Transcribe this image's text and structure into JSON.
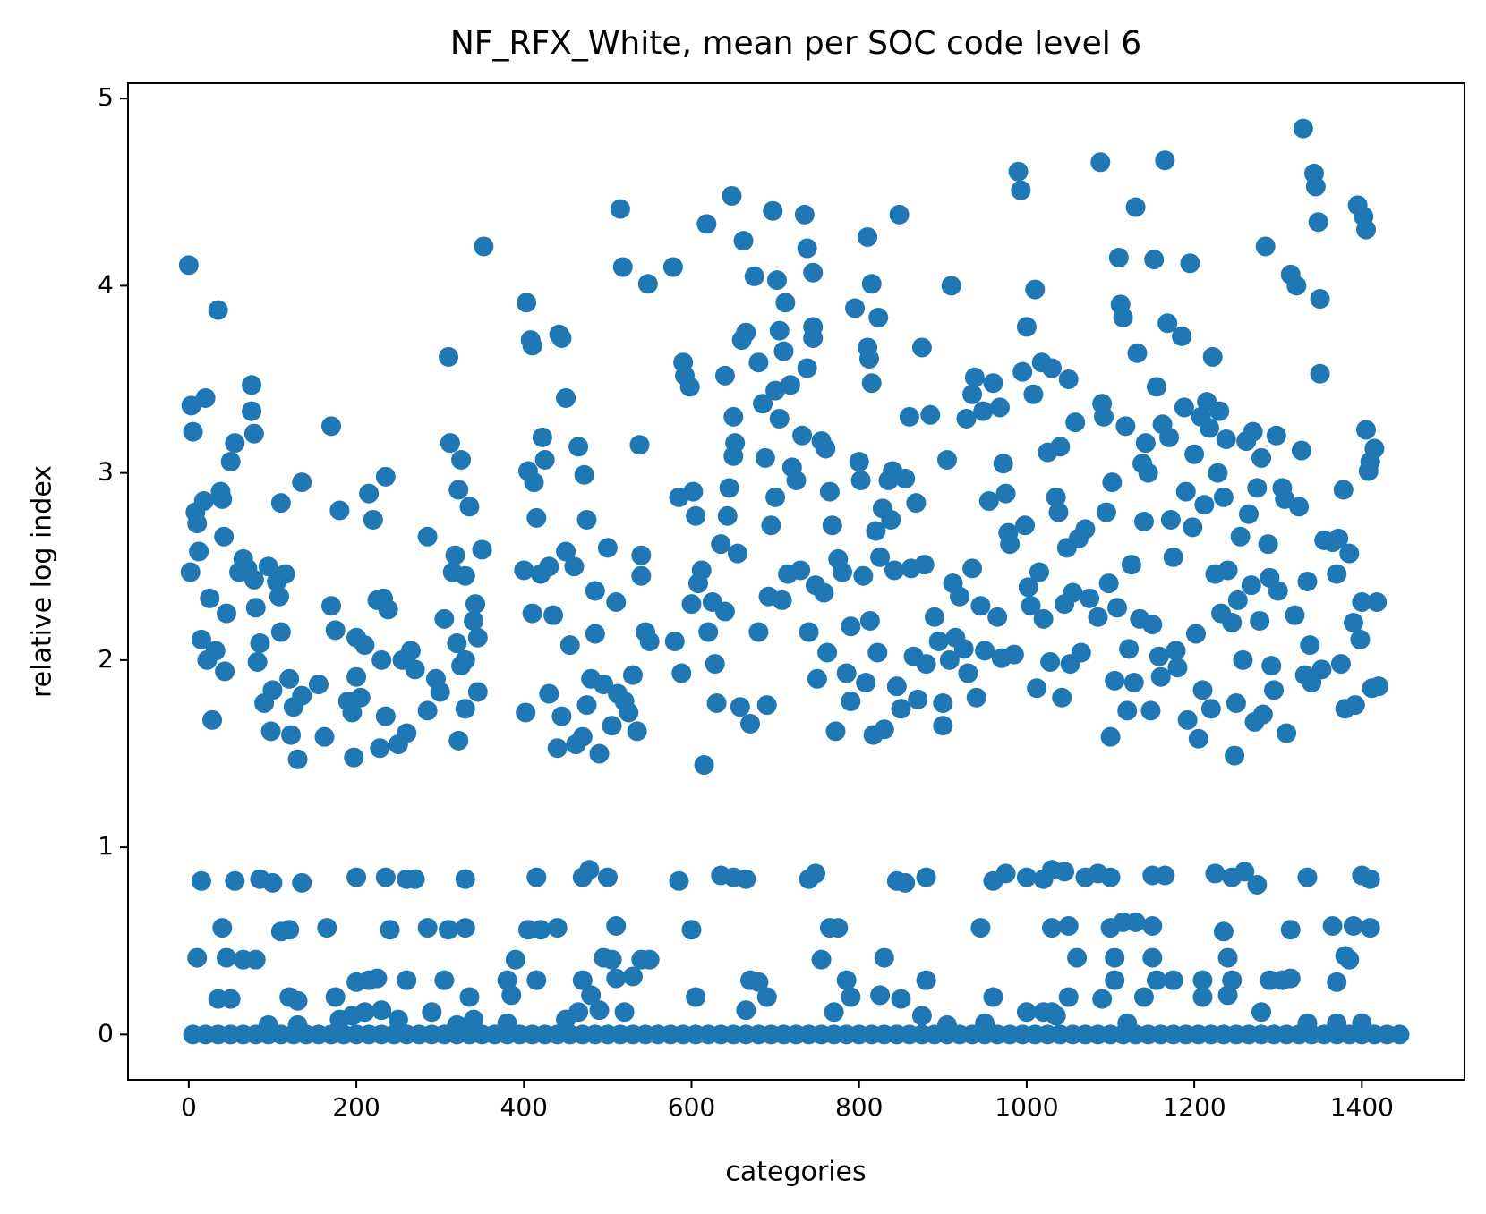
{
  "chart_data": {
    "type": "scatter",
    "title": "NF_RFX_White, mean per SOC code level 6",
    "xlabel": "categories",
    "ylabel": "relative log index",
    "color": "#1f77b4",
    "xlim": [
      -72.5,
      1522.5
    ],
    "ylim": [
      -0.242,
      5.082
    ],
    "xticks": [
      0,
      200,
      400,
      600,
      800,
      1000,
      1200,
      1400
    ],
    "yticks": [
      0,
      1,
      2,
      3,
      4,
      5
    ],
    "x": [
      0,
      3,
      5,
      2,
      8,
      10,
      12,
      15,
      18,
      20,
      22,
      25,
      28,
      32,
      35,
      38,
      40,
      42,
      43,
      45,
      50,
      55,
      60,
      65,
      70,
      75,
      75,
      78,
      78,
      80,
      82,
      85,
      90,
      95,
      98,
      100,
      105,
      108,
      110,
      115,
      110,
      120,
      122,
      125,
      130,
      135,
      135,
      155,
      162,
      170,
      170,
      175,
      180,
      190,
      195,
      197,
      200,
      200,
      205,
      210,
      215,
      220,
      225,
      228,
      230,
      232,
      235,
      235,
      238,
      250,
      255,
      260,
      265,
      270,
      285,
      285,
      295,
      300,
      305,
      310,
      312,
      315,
      318,
      320,
      322,
      325,
      322,
      325,
      330,
      330,
      330,
      335,
      340,
      342,
      345,
      350,
      345,
      352,
      400,
      402,
      403,
      405,
      408,
      410,
      410,
      412,
      415,
      420,
      422,
      425,
      430,
      430,
      435,
      440,
      442,
      445,
      445,
      450,
      450,
      455,
      460,
      462,
      465,
      470,
      472,
      475,
      475,
      480,
      485,
      485,
      490,
      495,
      500,
      505,
      510,
      512,
      515,
      518,
      520,
      525,
      530,
      535,
      538,
      540,
      540,
      545,
      548,
      550,
      578,
      580,
      585,
      588,
      590,
      592,
      598,
      600,
      602,
      605,
      608,
      612,
      615,
      618,
      620,
      625,
      628,
      630,
      635,
      640,
      640,
      643,
      645,
      648,
      650,
      650,
      652,
      655,
      658,
      660,
      662,
      665,
      670,
      675,
      680,
      680,
      685,
      688,
      690,
      692,
      695,
      697,
      700,
      700,
      702,
      705,
      705,
      708,
      710,
      712,
      715,
      718,
      720,
      725,
      730,
      732,
      735,
      738,
      738,
      740,
      745,
      745,
      745,
      748,
      750,
      755,
      758,
      760,
      762,
      765,
      768,
      772,
      775,
      780,
      785,
      790,
      790,
      795,
      800,
      802,
      805,
      808,
      810,
      810,
      812,
      813,
      815,
      815,
      817,
      820,
      822,
      823,
      825,
      828,
      830,
      835,
      838,
      840,
      842,
      845,
      848,
      850,
      855,
      860,
      862,
      865,
      868,
      870,
      875,
      878,
      880,
      885,
      890,
      895,
      900,
      900,
      905,
      908,
      910,
      912,
      915,
      920,
      925,
      928,
      930,
      935,
      935,
      938,
      940,
      945,
      948,
      950,
      955,
      960,
      965,
      968,
      970,
      972,
      975,
      978,
      980,
      985,
      990,
      993,
      995,
      998,
      1000,
      1002,
      1005,
      1008,
      1010,
      1012,
      1015,
      1018,
      1020,
      1025,
      1028,
      1030,
      1035,
      1038,
      1040,
      1042,
      1045,
      1048,
      1050,
      1052,
      1055,
      1058,
      1062,
      1065,
      1070,
      1075,
      1085,
      1088,
      1090,
      1092,
      1095,
      1098,
      1100,
      1102,
      1105,
      1108,
      1110,
      1112,
      1115,
      1118,
      1120,
      1122,
      1125,
      1128,
      1130,
      1132,
      1135,
      1138,
      1140,
      1142,
      1145,
      1148,
      1150,
      1152,
      1155,
      1158,
      1160,
      1162,
      1165,
      1168,
      1170,
      1172,
      1175,
      1178,
      1180,
      1185,
      1188,
      1190,
      1192,
      1195,
      1198,
      1200,
      1202,
      1205,
      1208,
      1210,
      1212,
      1215,
      1218,
      1220,
      1222,
      1225,
      1228,
      1230,
      1232,
      1235,
      1238,
      1240,
      1245,
      1248,
      1250,
      1252,
      1255,
      1258,
      1262,
      1265,
      1268,
      1270,
      1272,
      1275,
      1278,
      1280,
      1282,
      1285,
      1288,
      1290,
      1292,
      1295,
      1298,
      1300,
      1305,
      1308,
      1310,
      1315,
      1320,
      1322,
      1325,
      1328,
      1330,
      1332,
      1335,
      1338,
      1340,
      1343,
      1345,
      1348,
      1350,
      1350,
      1352,
      1355,
      1365,
      1370,
      1372,
      1375,
      1378,
      1380,
      1385,
      1390,
      1392,
      1395,
      1398,
      1400,
      1402,
      1405,
      1405,
      1408,
      1410,
      1412,
      1415,
      1418,
      1420,
      5,
      20,
      35,
      50,
      65,
      80,
      95,
      110,
      125,
      140,
      155,
      170,
      185,
      200,
      215,
      230,
      245,
      260,
      275,
      290,
      305,
      320,
      335,
      350,
      365,
      380,
      395,
      410,
      425,
      440,
      455,
      470,
      485,
      500,
      515,
      530,
      545,
      560,
      575,
      590,
      605,
      620,
      635,
      650,
      665,
      680,
      695,
      710,
      725,
      740,
      755,
      770,
      785,
      800,
      815,
      830,
      845,
      860,
      875,
      890,
      905,
      920,
      935,
      950,
      965,
      980,
      995,
      1010,
      1025,
      1040,
      1055,
      1070,
      1085,
      1100,
      1115,
      1130,
      1145,
      1160,
      1175,
      1190,
      1205,
      1220,
      1235,
      1250,
      1265,
      1280,
      1295,
      1310,
      1325,
      1340,
      1355,
      1370,
      1385,
      1400,
      1415,
      1430,
      1445,
      15,
      55,
      85,
      100,
      135,
      200,
      235,
      260,
      270,
      330,
      415,
      470,
      478,
      500,
      585,
      635,
      650,
      665,
      740,
      748,
      845,
      855,
      880,
      960,
      975,
      1000,
      1020,
      1030,
      1045,
      1070,
      1085,
      1100,
      1150,
      1165,
      1225,
      1245,
      1260,
      1275,
      1335,
      1400,
      1410,
      40,
      110,
      120,
      165,
      240,
      285,
      310,
      330,
      405,
      420,
      440,
      510,
      600,
      765,
      775,
      945,
      1030,
      1050,
      1100,
      1115,
      1130,
      1150,
      1235,
      1315,
      1365,
      1390,
      1410,
      10,
      45,
      65,
      80,
      390,
      495,
      505,
      540,
      550,
      755,
      830,
      1060,
      1105,
      1150,
      1240,
      1380,
      1385,
      35,
      50,
      120,
      130,
      175,
      200,
      215,
      225,
      260,
      305,
      335,
      380,
      385,
      415,
      470,
      480,
      510,
      530,
      605,
      670,
      680,
      690,
      785,
      790,
      825,
      850,
      880,
      960,
      1035,
      1050,
      1090,
      1105,
      1140,
      1155,
      1175,
      1210,
      1210,
      1240,
      1245,
      1290,
      1305,
      1315,
      1370,
      95,
      130,
      180,
      195,
      210,
      230,
      250,
      290,
      320,
      340,
      380,
      450,
      465,
      490,
      520,
      665,
      770,
      875,
      905,
      950,
      1000,
      1020,
      1030,
      1120,
      1280,
      1335,
      1370,
      1400
    ],
    "values": [
      4.11,
      3.36,
      3.22,
      2.47,
      2.79,
      2.73,
      2.58,
      2.11,
      2.85,
      3.4,
      2.0,
      2.33,
      1.68,
      2.05,
      3.87,
      2.9,
      2.86,
      2.66,
      1.94,
      2.25,
      3.06,
      3.16,
      2.47,
      2.54,
      2.49,
      3.47,
      3.33,
      2.43,
      3.21,
      2.28,
      1.99,
      2.09,
      1.77,
      2.5,
      1.62,
      1.84,
      2.42,
      2.34,
      2.15,
      2.46,
      2.84,
      1.9,
      1.6,
      1.75,
      1.47,
      1.81,
      2.95,
      1.87,
      1.59,
      2.29,
      3.25,
      2.16,
      2.8,
      1.78,
      1.72,
      1.48,
      1.91,
      2.12,
      1.8,
      2.08,
      2.89,
      2.75,
      2.32,
      1.53,
      2.0,
      2.33,
      1.7,
      2.98,
      2.27,
      1.55,
      2.0,
      1.61,
      2.05,
      1.95,
      2.66,
      1.73,
      1.9,
      1.83,
      2.22,
      3.62,
      3.16,
      2.47,
      2.56,
      2.09,
      2.91,
      3.07,
      1.57,
      1.97,
      2.0,
      1.74,
      2.45,
      2.82,
      2.21,
      2.3,
      2.12,
      2.59,
      1.83,
      4.21,
      2.48,
      1.72,
      3.91,
      3.01,
      3.71,
      3.68,
      2.25,
      2.95,
      2.76,
      2.46,
      3.19,
      3.07,
      2.5,
      1.82,
      2.24,
      1.53,
      3.74,
      3.72,
      1.7,
      2.58,
      3.4,
      2.08,
      2.5,
      1.55,
      3.14,
      1.59,
      2.99,
      2.75,
      1.76,
      1.9,
      2.14,
      2.37,
      1.5,
      1.87,
      2.6,
      1.65,
      2.31,
      1.82,
      4.41,
      4.1,
      1.78,
      1.72,
      1.92,
      1.62,
      3.15,
      2.56,
      2.45,
      2.15,
      4.01,
      2.1,
      4.1,
      2.1,
      2.87,
      1.93,
      3.59,
      3.52,
      3.46,
      2.3,
      2.9,
      2.77,
      2.41,
      2.48,
      1.44,
      4.33,
      2.15,
      2.31,
      1.98,
      1.77,
      2.62,
      3.52,
      2.26,
      2.77,
      2.92,
      4.48,
      3.3,
      3.09,
      3.16,
      2.57,
      1.75,
      3.71,
      4.24,
      3.75,
      1.66,
      4.05,
      3.59,
      2.15,
      3.37,
      3.08,
      1.76,
      2.34,
      2.72,
      4.4,
      3.44,
      2.87,
      4.03,
      3.29,
      3.76,
      2.32,
      3.65,
      3.91,
      2.46,
      3.47,
      3.03,
      2.96,
      2.48,
      3.2,
      4.38,
      4.2,
      3.56,
      2.15,
      4.07,
      3.72,
      3.78,
      2.4,
      1.9,
      3.17,
      2.36,
      3.13,
      2.04,
      2.9,
      2.72,
      1.62,
      2.54,
      2.47,
      1.93,
      2.18,
      1.78,
      3.88,
      3.06,
      2.96,
      2.45,
      1.88,
      4.26,
      3.67,
      3.61,
      2.21,
      4.01,
      3.48,
      1.6,
      2.69,
      2.04,
      3.83,
      2.55,
      2.81,
      1.63,
      2.96,
      2.75,
      3.01,
      2.48,
      1.86,
      4.38,
      1.74,
      2.97,
      3.3,
      2.49,
      2.02,
      2.84,
      1.79,
      3.67,
      2.51,
      1.98,
      3.31,
      2.23,
      2.1,
      1.77,
      1.65,
      3.07,
      2.0,
      4.0,
      2.41,
      2.12,
      2.34,
      2.06,
      3.29,
      1.93,
      3.42,
      2.49,
      3.51,
      1.8,
      2.29,
      3.33,
      2.05,
      2.85,
      3.48,
      2.23,
      3.35,
      2.01,
      3.05,
      2.89,
      2.68,
      2.62,
      2.03,
      4.61,
      4.51,
      3.54,
      2.72,
      3.78,
      2.39,
      2.29,
      3.42,
      3.98,
      1.85,
      2.47,
      3.59,
      2.22,
      3.11,
      1.99,
      3.56,
      2.87,
      2.79,
      3.14,
      1.8,
      2.3,
      2.6,
      3.5,
      1.98,
      2.36,
      3.27,
      2.65,
      2.04,
      2.7,
      2.33,
      2.23,
      4.66,
      3.37,
      3.3,
      2.79,
      2.41,
      1.59,
      2.95,
      1.89,
      2.28,
      4.15,
      3.9,
      3.83,
      3.25,
      1.73,
      2.06,
      2.51,
      1.88,
      4.42,
      3.64,
      2.22,
      3.05,
      2.74,
      3.16,
      3.0,
      1.73,
      2.19,
      4.14,
      3.46,
      2.02,
      1.91,
      3.26,
      4.67,
      3.8,
      3.19,
      2.75,
      2.55,
      2.05,
      1.96,
      3.73,
      3.35,
      2.9,
      1.68,
      4.12,
      2.71,
      3.1,
      2.14,
      1.58,
      3.3,
      1.84,
      2.83,
      3.38,
      3.24,
      1.74,
      3.62,
      2.46,
      3.0,
      3.33,
      2.25,
      2.87,
      3.18,
      2.48,
      2.2,
      1.49,
      1.77,
      2.32,
      2.66,
      2.0,
      3.17,
      2.78,
      2.4,
      3.22,
      1.67,
      2.92,
      2.21,
      3.08,
      1.71,
      4.21,
      2.62,
      2.44,
      1.97,
      1.84,
      3.2,
      2.37,
      2.92,
      2.86,
      1.61,
      4.06,
      2.24,
      4.0,
      2.82,
      3.12,
      4.84,
      1.92,
      2.42,
      2.08,
      1.88,
      4.6,
      4.53,
      4.34,
      3.93,
      3.53,
      1.95,
      2.64,
      2.63,
      2.46,
      2.65,
      1.98,
      2.91,
      1.74,
      2.57,
      2.2,
      1.76,
      4.43,
      2.11,
      2.31,
      4.37,
      4.3,
      3.23,
      3.01,
      3.06,
      1.85,
      3.13,
      2.31,
      1.86,
      0,
      0,
      0,
      0,
      0,
      0,
      0,
      0,
      0,
      0,
      0,
      0,
      0,
      0,
      0,
      0,
      0,
      0,
      0,
      0,
      0,
      0,
      0,
      0,
      0,
      0,
      0,
      0,
      0,
      0,
      0,
      0,
      0,
      0,
      0,
      0,
      0,
      0,
      0,
      0,
      0,
      0,
      0,
      0,
      0,
      0,
      0,
      0,
      0,
      0,
      0,
      0,
      0,
      0,
      0,
      0,
      0,
      0,
      0,
      0,
      0,
      0,
      0,
      0,
      0,
      0,
      0,
      0,
      0,
      0,
      0,
      0,
      0,
      0,
      0,
      0,
      0,
      0,
      0,
      0,
      0,
      0,
      0,
      0,
      0,
      0,
      0,
      0,
      0,
      0,
      0,
      0,
      0,
      0,
      0,
      0,
      0,
      0.82,
      0.82,
      0.83,
      0.81,
      0.81,
      0.84,
      0.84,
      0.83,
      0.83,
      0.83,
      0.84,
      0.84,
      0.88,
      0.84,
      0.82,
      0.85,
      0.84,
      0.83,
      0.83,
      0.86,
      0.82,
      0.81,
      0.84,
      0.82,
      0.86,
      0.84,
      0.83,
      0.88,
      0.87,
      0.84,
      0.86,
      0.84,
      0.85,
      0.85,
      0.86,
      0.84,
      0.87,
      0.8,
      0.84,
      0.85,
      0.83,
      0.57,
      0.55,
      0.56,
      0.57,
      0.56,
      0.57,
      0.56,
      0.57,
      0.56,
      0.56,
      0.57,
      0.58,
      0.56,
      0.57,
      0.57,
      0.57,
      0.57,
      0.58,
      0.57,
      0.6,
      0.6,
      0.58,
      0.55,
      0.56,
      0.58,
      0.58,
      0.57,
      0.41,
      0.41,
      0.4,
      0.4,
      0.4,
      0.41,
      0.4,
      0.4,
      0.4,
      0.4,
      0.41,
      0.41,
      0.41,
      0.41,
      0.41,
      0.42,
      0.4,
      0.19,
      0.19,
      0.2,
      0.18,
      0.2,
      0.28,
      0.29,
      0.3,
      0.29,
      0.29,
      0.2,
      0.29,
      0.21,
      0.29,
      0.29,
      0.21,
      0.3,
      0.31,
      0.2,
      0.29,
      0.28,
      0.2,
      0.29,
      0.2,
      0.21,
      0.19,
      0.29,
      0.2,
      0.1,
      0.2,
      0.19,
      0.29,
      0.2,
      0.29,
      0.29,
      0.29,
      0.2,
      0.21,
      0.29,
      0.29,
      0.29,
      0.3,
      0.28,
      0.05,
      0.05,
      0.08,
      0.1,
      0.12,
      0.13,
      0.08,
      0.12,
      0.05,
      0.08,
      0.06,
      0.08,
      0.12,
      0.13,
      0.12,
      0.13,
      0.12,
      0.1,
      0.05,
      0.06,
      0.12,
      0.12,
      0.12,
      0.06,
      0.12,
      0.06,
      0.06,
      0.06
    ]
  }
}
